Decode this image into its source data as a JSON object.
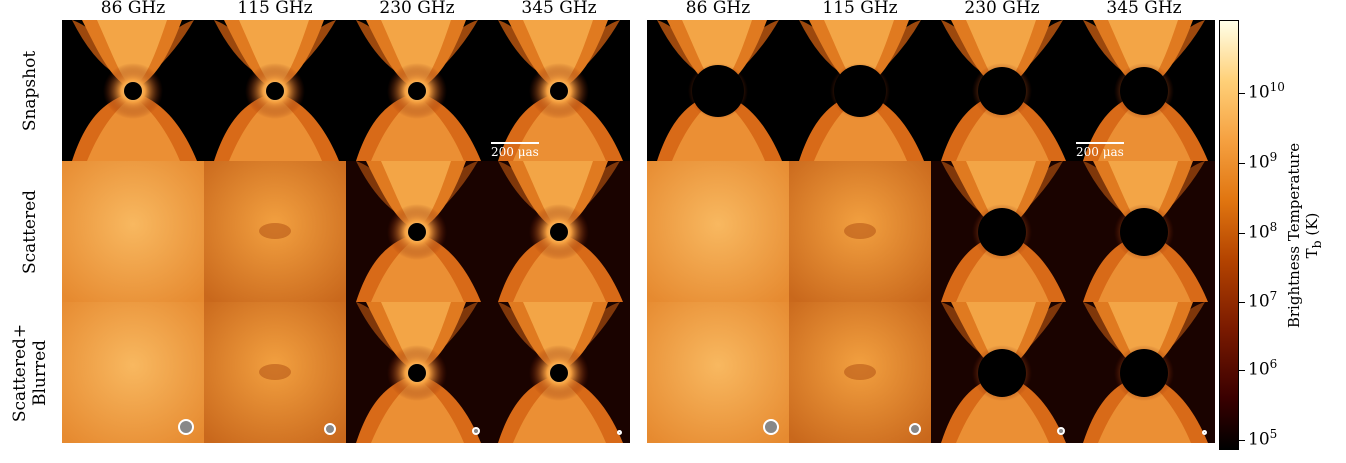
{
  "columns": [
    "86 GHz",
    "115 GHz",
    "230 GHz",
    "345 GHz"
  ],
  "rows": [
    "Snapshot",
    "Scattered",
    "Scattered+\nBlurred"
  ],
  "scalebar_label": "200 μas",
  "colorbar": {
    "title_line1": "Brightness Temperature",
    "title_line2": "T_b (K)",
    "ticks": [
      "10^5",
      "10^6",
      "10^7",
      "10^8",
      "10^9",
      "10^10"
    ],
    "colormap": "afmhot",
    "scale": "log"
  },
  "colors": {
    "background": "#000000",
    "hot": "#f08a20",
    "glow": "#ffd080"
  }
}
